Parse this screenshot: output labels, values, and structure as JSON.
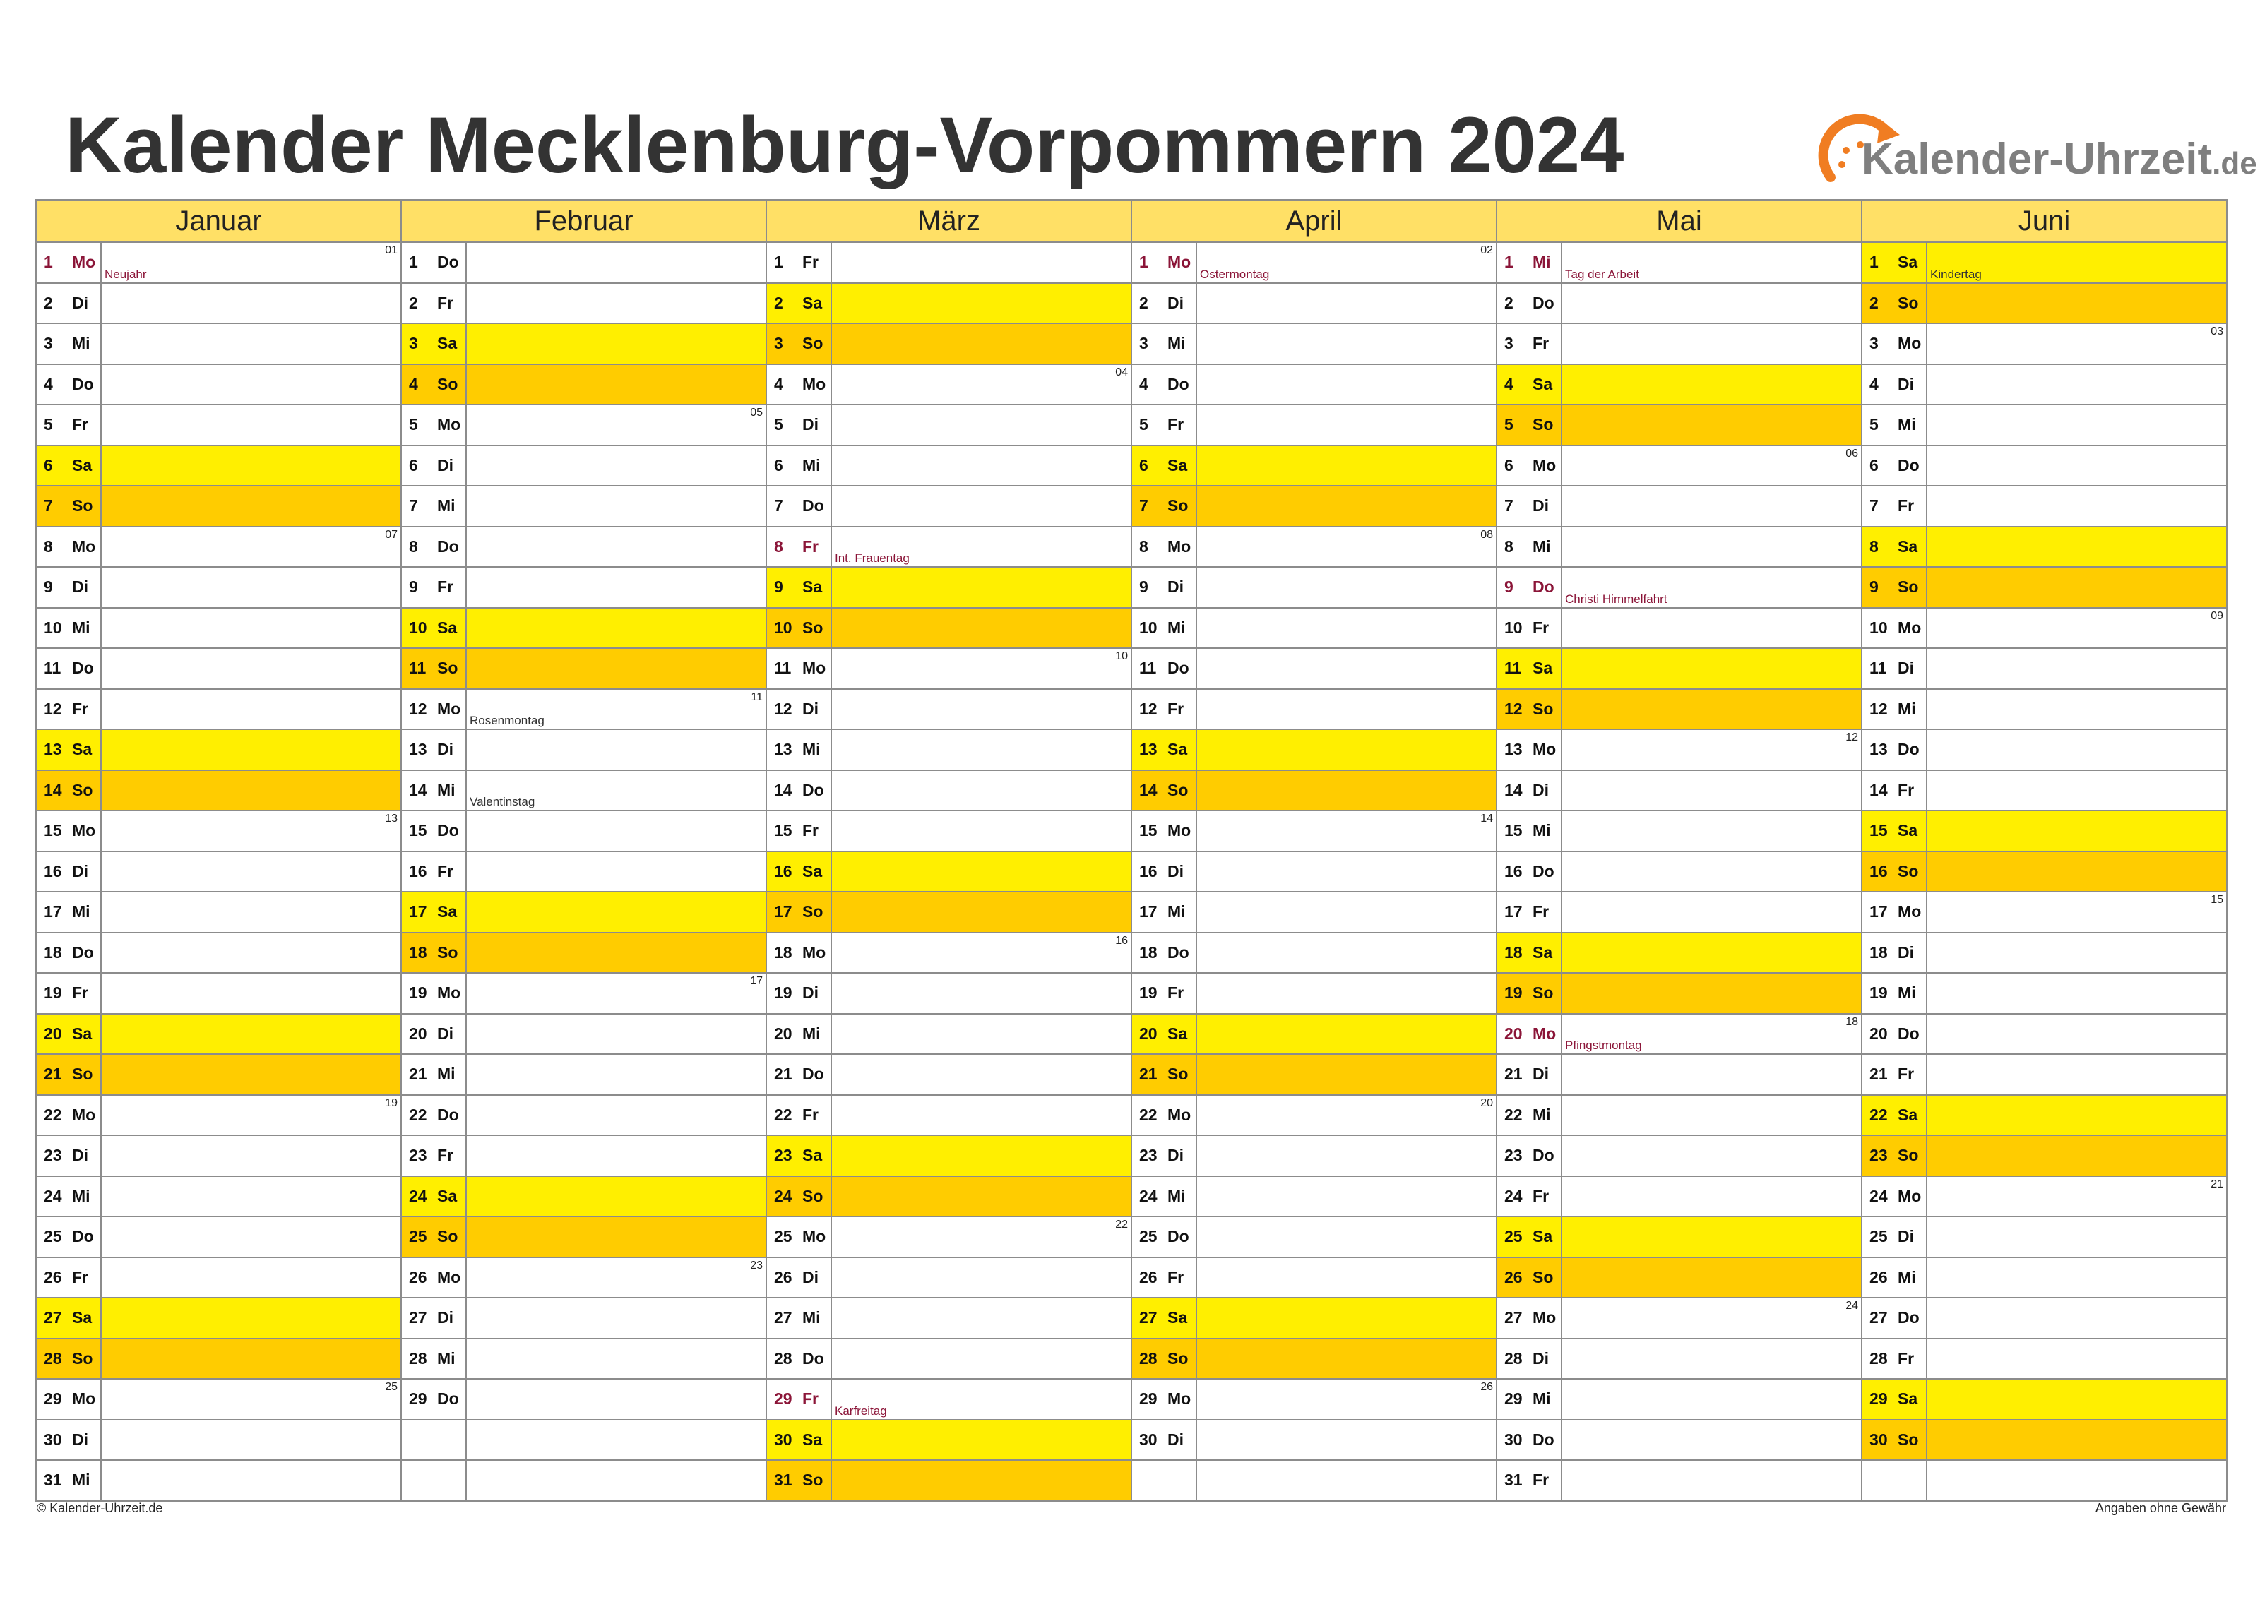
{
  "title": "Kalender Mecklenburg-Vorpommern 2024",
  "logo": {
    "name": "Kalender-Uhrzeit",
    "tld": ".de"
  },
  "footer": {
    "left": "© Kalender-Uhrzeit.de",
    "right": "Angaben ohne Gewähr"
  },
  "colors": {
    "header": "#ffe066",
    "saturday": "#ffef00",
    "sunday": "#ffcc00",
    "holiday_text": "#8b1538",
    "grid": "#8c8c8c"
  },
  "weekday_abbr": [
    "Mo",
    "Di",
    "Mi",
    "Do",
    "Fr",
    "Sa",
    "So"
  ],
  "months": [
    {
      "name": "Januar",
      "days": 31,
      "first_weekday": 0
    },
    {
      "name": "Februar",
      "days": 29,
      "first_weekday": 3
    },
    {
      "name": "März",
      "days": 31,
      "first_weekday": 4
    },
    {
      "name": "April",
      "days": 30,
      "first_weekday": 0
    },
    {
      "name": "Mai",
      "days": 31,
      "first_weekday": 2
    },
    {
      "name": "Juni",
      "days": 30,
      "first_weekday": 5
    }
  ],
  "holidays": [
    {
      "month": 1,
      "day": 1,
      "name": "Neujahr",
      "public": true
    },
    {
      "month": 2,
      "day": 12,
      "name": "Rosenmontag",
      "public": false
    },
    {
      "month": 2,
      "day": 14,
      "name": "Valentinstag",
      "public": false
    },
    {
      "month": 3,
      "day": 8,
      "name": "Int. Frauentag",
      "public": true
    },
    {
      "month": 3,
      "day": 29,
      "name": "Karfreitag",
      "public": true
    },
    {
      "month": 4,
      "day": 1,
      "name": "Ostermontag",
      "public": true
    },
    {
      "month": 5,
      "day": 1,
      "name": "Tag der Arbeit",
      "public": true
    },
    {
      "month": 5,
      "day": 9,
      "name": "Christi Himmelfahrt",
      "public": true
    },
    {
      "month": 5,
      "day": 20,
      "name": "Pfingstmontag",
      "public": true
    },
    {
      "month": 6,
      "day": 1,
      "name": "Kindertag",
      "public": false
    }
  ],
  "week_number_start": 1
}
